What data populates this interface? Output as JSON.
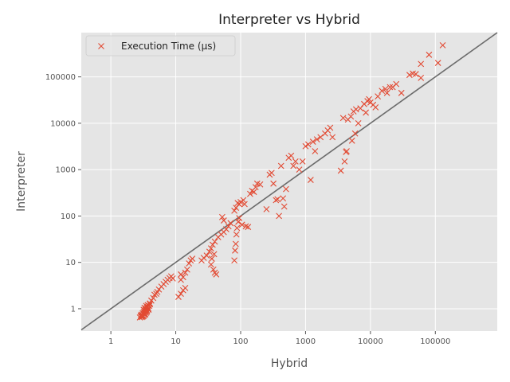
{
  "chart_data": {
    "type": "scatter",
    "title": "Interpreter vs Hybrid",
    "xlabel": "Hybrid",
    "ylabel": "Interpreter",
    "xscale": "log",
    "yscale": "log",
    "xlim": [
      0.35,
      900000
    ],
    "ylim": [
      0.33,
      900000
    ],
    "x_ticks": [
      1,
      10,
      100,
      1000,
      10000,
      100000
    ],
    "y_ticks": [
      1,
      10,
      100,
      1000,
      10000,
      100000
    ],
    "x_tick_labels": [
      "1",
      "10",
      "100",
      "1000",
      "10000",
      "100000"
    ],
    "y_tick_labels": [
      "1",
      "10",
      "100",
      "1000",
      "10000",
      "100000"
    ],
    "grid": true,
    "legend_position": "top-left",
    "reference_line": "y = x",
    "colors": {
      "background": "#e5e5e5",
      "grid": "#ffffff",
      "marker": "#e24a33",
      "reference_line": "#6b6b6b"
    },
    "series": [
      {
        "name": "Execution Time (µs)",
        "marker": "x",
        "points": [
          [
            2.8,
            0.65
          ],
          [
            2.9,
            0.68
          ],
          [
            3.0,
            0.7
          ],
          [
            3.0,
            0.75
          ],
          [
            3.1,
            0.72
          ],
          [
            3.1,
            0.8
          ],
          [
            3.2,
            0.78
          ],
          [
            3.2,
            0.85
          ],
          [
            3.3,
            0.82
          ],
          [
            3.3,
            0.9
          ],
          [
            3.4,
            0.88
          ],
          [
            3.4,
            0.95
          ],
          [
            3.5,
            1.0
          ],
          [
            3.6,
            1.05
          ],
          [
            3.7,
            1.1
          ],
          [
            3.8,
            1.0
          ],
          [
            2.9,
            0.72
          ],
          [
            3.0,
            0.66
          ],
          [
            3.1,
            0.68
          ],
          [
            3.2,
            0.7
          ],
          [
            3.3,
            0.74
          ],
          [
            3.4,
            0.76
          ],
          [
            3.5,
            0.82
          ],
          [
            3.6,
            0.86
          ],
          [
            3.2,
            0.95
          ],
          [
            3.3,
            1.05
          ],
          [
            3.5,
            1.15
          ],
          [
            3.7,
            1.2
          ],
          [
            3.9,
            1.15
          ],
          [
            4.0,
            1.25
          ],
          [
            3.6,
            0.92
          ],
          [
            3.8,
            0.95
          ],
          [
            4.0,
            1.3
          ],
          [
            4.2,
            1.5
          ],
          [
            4.5,
            1.7
          ],
          [
            4.7,
            2.0
          ],
          [
            5.0,
            2.1
          ],
          [
            5.2,
            2.3
          ],
          [
            5.5,
            2.6
          ],
          [
            6.0,
            3.0
          ],
          [
            6.5,
            3.4
          ],
          [
            7.0,
            3.8
          ],
          [
            7.5,
            4.2
          ],
          [
            8.0,
            4.6
          ],
          [
            8.5,
            5.0
          ],
          [
            9.0,
            4.5
          ],
          [
            11,
            1.8
          ],
          [
            12,
            2.1
          ],
          [
            13,
            2.5
          ],
          [
            14,
            2.8
          ],
          [
            12,
            4.2
          ],
          [
            13,
            4.8
          ],
          [
            12,
            5.5
          ],
          [
            14,
            6.0
          ],
          [
            15,
            7.0
          ],
          [
            16,
            9.5
          ],
          [
            17,
            11
          ],
          [
            18,
            12
          ],
          [
            25,
            11
          ],
          [
            27,
            12.5
          ],
          [
            30,
            14
          ],
          [
            33,
            17
          ],
          [
            35,
            20
          ],
          [
            37,
            24
          ],
          [
            40,
            28
          ],
          [
            45,
            35
          ],
          [
            35,
            9
          ],
          [
            38,
            7
          ],
          [
            40,
            6
          ],
          [
            42,
            5.5
          ],
          [
            36,
            12
          ],
          [
            39,
            15
          ],
          [
            50,
            40
          ],
          [
            55,
            45
          ],
          [
            60,
            52
          ],
          [
            65,
            60
          ],
          [
            52,
            95
          ],
          [
            55,
            80
          ],
          [
            70,
            70
          ],
          [
            80,
            130
          ],
          [
            85,
            150
          ],
          [
            90,
            190
          ],
          [
            95,
            180
          ],
          [
            100,
            200
          ],
          [
            110,
            220
          ],
          [
            115,
            180
          ],
          [
            80,
            11
          ],
          [
            82,
            18
          ],
          [
            84,
            25
          ],
          [
            86,
            40
          ],
          [
            88,
            55
          ],
          [
            92,
            75
          ],
          [
            95,
            90
          ],
          [
            105,
            65
          ],
          [
            120,
            60
          ],
          [
            130,
            58
          ],
          [
            140,
            300
          ],
          [
            150,
            350
          ],
          [
            160,
            330
          ],
          [
            170,
            420
          ],
          [
            180,
            500
          ],
          [
            200,
            480
          ],
          [
            250,
            140
          ],
          [
            280,
            780
          ],
          [
            300,
            850
          ],
          [
            320,
            500
          ],
          [
            350,
            220
          ],
          [
            370,
            230
          ],
          [
            390,
            100
          ],
          [
            420,
            1200
          ],
          [
            450,
            240
          ],
          [
            470,
            160
          ],
          [
            500,
            380
          ],
          [
            550,
            1800
          ],
          [
            600,
            2000
          ],
          [
            650,
            1200
          ],
          [
            700,
            1500
          ],
          [
            800,
            1000
          ],
          [
            900,
            1500
          ],
          [
            1000,
            3200
          ],
          [
            1100,
            3500
          ],
          [
            1200,
            600
          ],
          [
            1300,
            4000
          ],
          [
            1400,
            2500
          ],
          [
            1500,
            4500
          ],
          [
            1700,
            5000
          ],
          [
            2000,
            6000
          ],
          [
            2200,
            7000
          ],
          [
            2400,
            8000
          ],
          [
            2600,
            5000
          ],
          [
            3500,
            950
          ],
          [
            4000,
            1500
          ],
          [
            4200,
            2400
          ],
          [
            4500,
            12000
          ],
          [
            5000,
            14000
          ],
          [
            5500,
            18000
          ],
          [
            6000,
            20000
          ],
          [
            7000,
            21000
          ],
          [
            8000,
            26000
          ],
          [
            9000,
            30000
          ],
          [
            9500,
            33000
          ],
          [
            10000,
            28000
          ],
          [
            11000,
            25000
          ],
          [
            12000,
            22000
          ],
          [
            15000,
            50000
          ],
          [
            18000,
            45000
          ],
          [
            20000,
            60000
          ],
          [
            25000,
            70000
          ],
          [
            30000,
            45000
          ],
          [
            40000,
            110000
          ],
          [
            50000,
            115000
          ],
          [
            60000,
            95000
          ],
          [
            60000,
            190000
          ],
          [
            80000,
            300000
          ],
          [
            110000,
            200000
          ],
          [
            130000,
            480000
          ],
          [
            4300,
            2500
          ],
          [
            5200,
            4200
          ],
          [
            5800,
            6000
          ],
          [
            6500,
            10000
          ],
          [
            3800,
            13000
          ],
          [
            8500,
            17000
          ],
          [
            13000,
            38000
          ],
          [
            17000,
            55000
          ],
          [
            22000,
            60000
          ],
          [
            45000,
            118000
          ]
        ]
      }
    ]
  }
}
